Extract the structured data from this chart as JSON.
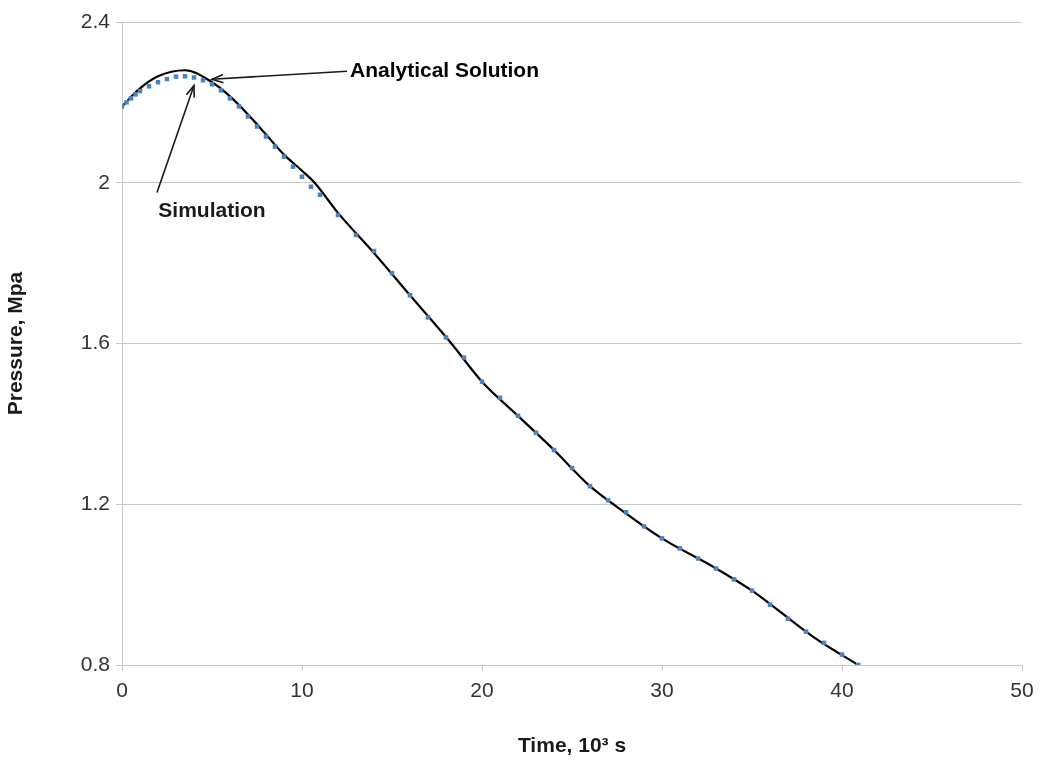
{
  "chart_data": {
    "type": "line",
    "xlabel": "Time, 10³ s",
    "ylabel": "Pressure, Mpa",
    "xlim": [
      0,
      50
    ],
    "xticks": [
      0,
      10,
      20,
      30,
      40,
      50
    ],
    "ylim": [
      0.8,
      2.4
    ],
    "yticks": [
      0.8,
      1.2,
      1.6,
      2,
      2.4
    ],
    "grid": "y",
    "legend": false,
    "series": [
      {
        "name": "Simulation",
        "type": "scatter",
        "marker": "square",
        "color": "#4f81bd",
        "x": [
          0,
          0.25,
          0.5,
          0.75,
          1,
          1.5,
          2,
          2.5,
          3,
          3.5,
          4,
          4.5,
          5,
          5.5,
          6,
          6.5,
          7,
          7.5,
          8,
          8.5,
          9,
          9.5,
          10,
          10.5,
          11,
          12,
          13,
          14,
          15,
          16,
          17,
          18,
          19,
          20,
          21,
          22,
          23,
          24,
          25,
          26,
          27,
          28,
          29,
          30,
          31,
          32,
          33,
          34,
          35,
          36,
          37,
          38,
          39,
          40,
          40.9
        ],
        "values": [
          2.19,
          2.2,
          2.21,
          2.22,
          2.228,
          2.24,
          2.25,
          2.258,
          2.264,
          2.265,
          2.262,
          2.255,
          2.245,
          2.23,
          2.21,
          2.19,
          2.165,
          2.14,
          2.115,
          2.09,
          2.065,
          2.04,
          2.015,
          1.99,
          1.97,
          1.92,
          1.87,
          1.83,
          1.775,
          1.72,
          1.665,
          1.615,
          1.565,
          1.505,
          1.465,
          1.42,
          1.378,
          1.335,
          1.29,
          1.245,
          1.21,
          1.18,
          1.145,
          1.115,
          1.09,
          1.065,
          1.04,
          1.013,
          0.985,
          0.95,
          0.915,
          0.883,
          0.855,
          0.826,
          0.8
        ]
      },
      {
        "name": "Analytical Solution",
        "type": "line",
        "marker": "none",
        "line_style": "solid",
        "color": "#000000",
        "x": [
          0,
          1,
          2,
          3.5,
          5,
          6,
          7,
          8,
          9,
          10,
          10.7,
          12,
          14,
          16,
          18.3,
          20,
          22,
          24,
          26,
          27.3,
          30,
          32.9,
          35,
          38.4,
          40.9
        ],
        "values": [
          2.19,
          2.235,
          2.265,
          2.28,
          2.25,
          2.215,
          2.17,
          2.12,
          2.07,
          2.03,
          2,
          1.925,
          1.825,
          1.72,
          1.6,
          1.505,
          1.42,
          1.335,
          1.245,
          1.2,
          1.115,
          1.043,
          0.985,
          0.87,
          0.8
        ]
      }
    ]
  }
}
